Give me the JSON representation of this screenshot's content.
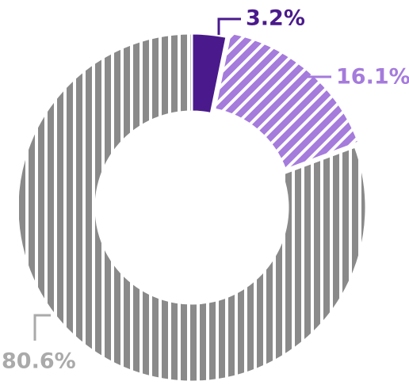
{
  "chart_data": {
    "type": "donut",
    "values": [
      3.2,
      16.1,
      80.6
    ],
    "value_labels": [
      "3.2%",
      "16.1%",
      "80.6%"
    ],
    "colors": [
      "#4a1a8c",
      "#a57bdc",
      "#8a8a8a"
    ],
    "label_colors": [
      "#4a1a8c",
      "#a57bdc",
      "#aaaaaa"
    ],
    "patterns": [
      "solid",
      "diagonal",
      "vertical"
    ],
    "exploded": [
      false,
      true,
      false
    ]
  }
}
